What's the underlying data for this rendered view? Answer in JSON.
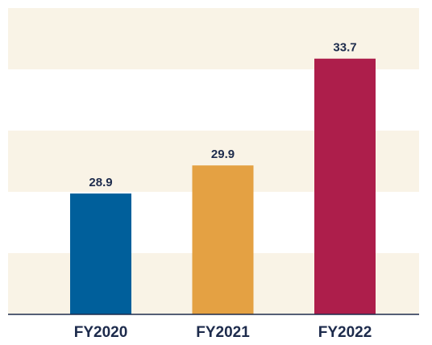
{
  "chart_data": {
    "type": "bar",
    "categories": [
      "FY2020",
      "FY2021",
      "FY2022"
    ],
    "values": [
      28.9,
      29.9,
      33.7
    ],
    "colors": [
      "#005f9b",
      "#e4a143",
      "#ad1e4b"
    ],
    "ylim": [
      24.6,
      35.5
    ]
  }
}
